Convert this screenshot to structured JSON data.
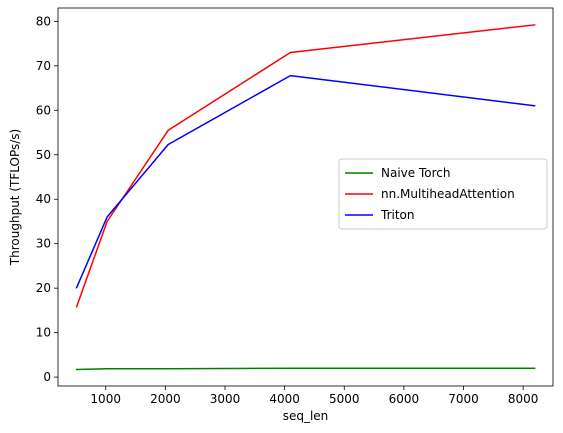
{
  "chart_data": {
    "type": "line",
    "xlabel": "seq_len",
    "ylabel": "Throughput (TFLOPs/s)",
    "xlim": [
      200,
      8500
    ],
    "ylim": [
      -2,
      83
    ],
    "xticks": [
      1000,
      2000,
      3000,
      4000,
      5000,
      6000,
      7000,
      8000
    ],
    "yticks": [
      0,
      10,
      20,
      30,
      40,
      50,
      60,
      70,
      80
    ],
    "grid": false,
    "legend_position": "center-right",
    "series": [
      {
        "name": "Naive Torch",
        "color": "#008000",
        "x": [
          512,
          1024,
          2048,
          4096,
          8192
        ],
        "y": [
          1.7,
          1.9,
          1.9,
          2.0,
          2.0
        ]
      },
      {
        "name": "nn.MultiheadAttention",
        "color": "#ff0000",
        "x": [
          512,
          1024,
          2048,
          4096,
          8192
        ],
        "y": [
          15.8,
          35.0,
          55.5,
          73.0,
          79.2
        ]
      },
      {
        "name": "Triton",
        "color": "#0000ff",
        "x": [
          512,
          1024,
          2048,
          4096,
          8192
        ],
        "y": [
          20.1,
          36.0,
          52.3,
          67.8,
          61.0
        ]
      }
    ]
  }
}
